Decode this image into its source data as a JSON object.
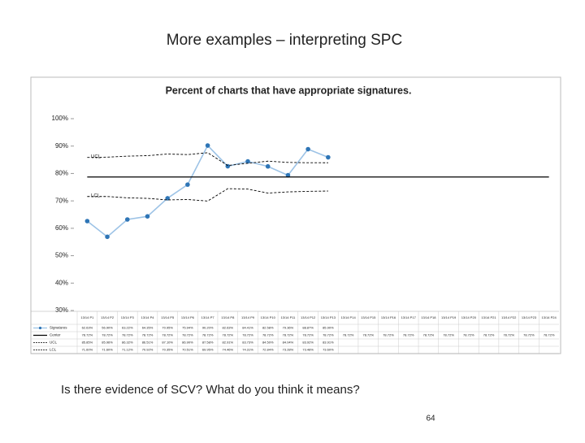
{
  "slide_title": "More examples – interpreting SPC",
  "question": "Is there evidence of SCV? What do you think it means?",
  "page_number": "64",
  "chart_data": {
    "type": "line",
    "title": "Percent of charts that have appropriate signatures.",
    "categories": [
      "13/14 P1",
      "13/14 P2",
      "13/14 P3",
      "13/14 P4",
      "13/14 P5",
      "13/14 P6",
      "13/14 P7",
      "13/14 P8",
      "13/14 P9",
      "13/14 P10",
      "13/14 P11",
      "13/14 P12",
      "13/14 P13",
      "13/14 P14",
      "13/14 P15",
      "13/14 P16",
      "13/14 P17",
      "13/14 P18",
      "13/14 P19",
      "13/14 P20",
      "13/14 P21",
      "13/14 P22",
      "13/14 P23",
      "13/14 P24"
    ],
    "ylim": [
      30,
      100
    ],
    "yticks": [
      {
        "value": 30,
        "label": "30%"
      },
      {
        "value": 40,
        "label": "40%"
      },
      {
        "value": 50,
        "label": "50%"
      },
      {
        "value": 60,
        "label": "60%"
      },
      {
        "value": 70,
        "label": "70%"
      },
      {
        "value": 80,
        "label": "80%"
      },
      {
        "value": 90,
        "label": "90%"
      },
      {
        "value": 100,
        "label": "100%"
      }
    ],
    "series": [
      {
        "name": "Signatures",
        "color": "#9dc3e6",
        "marker_color": "#2e75b6",
        "dashed": false,
        "values": [
          62.63,
          56.9,
          63.22,
          64.35,
          70.95,
          75.94,
          90.2,
          82.63,
          84.41,
          82.58,
          79.36,
          88.87,
          85.9,
          null,
          null,
          null,
          null,
          null,
          null,
          null,
          null,
          null,
          null,
          null
        ],
        "value_labels": [
          "62.63%",
          "56.90%",
          "63.22%",
          "64.35%",
          "70.95%",
          "75.94%",
          "90.20%",
          "82.63%",
          "84.41%",
          "82.58%",
          "79.36%",
          "88.87%",
          "85.90%",
          null,
          null,
          null,
          null,
          null,
          null,
          null,
          null,
          null,
          null,
          null
        ]
      },
      {
        "name": "Center",
        "color": "#000000",
        "dashed": false,
        "values": [
          78.72,
          78.72,
          78.72,
          78.72,
          78.72,
          78.72,
          78.72,
          78.72,
          78.72,
          78.72,
          78.72,
          78.72,
          78.72,
          78.72,
          78.72,
          78.72,
          78.72,
          78.72,
          78.72,
          78.72,
          78.72,
          78.72,
          78.72,
          78.72
        ],
        "value_labels": [
          "78.72%",
          "78.72%",
          "78.72%",
          "78.72%",
          "78.72%",
          "78.72%",
          "78.72%",
          "78.72%",
          "78.72%",
          "78.72%",
          "78.72%",
          "78.72%",
          "78.72%",
          "78.72%",
          "78.72%",
          "78.72%",
          "78.72%",
          "78.72%",
          "78.72%",
          "78.72%",
          "78.72%",
          "78.72%",
          "78.72%",
          "78.72%"
        ]
      },
      {
        "name": "UCL",
        "color": "#000000",
        "dashed": true,
        "values": [
          85.85,
          85.96,
          86.32,
          86.51,
          87.1,
          86.9,
          87.58,
          82.91,
          83.73,
          84.5,
          84.04,
          83.92,
          83.91,
          null,
          null,
          null,
          null,
          null,
          null,
          null,
          null,
          null,
          null,
          null
        ],
        "value_labels": [
          "85.85%",
          "85.96%",
          "86.32%",
          "86.51%",
          "87.10%",
          "86.90%",
          "87.58%",
          "82.91%",
          "83.73%",
          "84.50%",
          "84.04%",
          "83.92%",
          "83.91%",
          null,
          null,
          null,
          null,
          null,
          null,
          null,
          null,
          null,
          null,
          null
        ]
      },
      {
        "name": "LCL",
        "color": "#000000",
        "dashed": true,
        "values": [
          71.6,
          71.6,
          71.12,
          70.92,
          70.35,
          70.51,
          69.95,
          74.46,
          74.31,
          72.84,
          73.28,
          73.48,
          73.6,
          null,
          null,
          null,
          null,
          null,
          null,
          null,
          null,
          null,
          null,
          null
        ],
        "value_labels": [
          "71.60%",
          "71.60%",
          "71.12%",
          "70.92%",
          "70.35%",
          "70.51%",
          "69.95%",
          "74.46%",
          "74.31%",
          "72.84%",
          "73.28%",
          "73.48%",
          "73.60%",
          null,
          null,
          null,
          null,
          null,
          null,
          null,
          null,
          null,
          null,
          null
        ]
      }
    ]
  }
}
